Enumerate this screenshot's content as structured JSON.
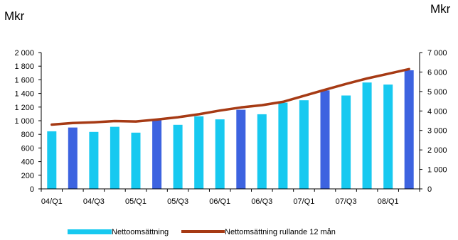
{
  "chart_data": {
    "type": "bar",
    "y_unit_left": "Mkr",
    "y_unit_right": "Mkr",
    "categories": [
      "04/Q1",
      "04/Q2",
      "04/Q3",
      "04/Q4",
      "05/Q1",
      "05/Q2",
      "05/Q3",
      "05/Q4",
      "06/Q1",
      "06/Q2",
      "06/Q3",
      "06/Q4",
      "07/Q1",
      "07/Q2",
      "07/Q3",
      "07/Q4",
      "08/Q1",
      "08/Q2"
    ],
    "x_tick_labels": [
      "04/Q1",
      "04/Q3",
      "05/Q1",
      "05/Q3",
      "06/Q1",
      "06/Q3",
      "07/Q1",
      "07/Q3",
      "08/Q1"
    ],
    "series": [
      {
        "name": "Nettoomsättning",
        "axis": "left",
        "type": "bar",
        "values": [
          845,
          900,
          835,
          910,
          825,
          1020,
          940,
          1065,
          1020,
          1160,
          1095,
          1265,
          1300,
          1445,
          1370,
          1560,
          1530,
          1740
        ]
      },
      {
        "name": "Nettomsättning rullande 12 mån",
        "axis": "right",
        "type": "line",
        "values": [
          3300,
          3380,
          3420,
          3480,
          3460,
          3560,
          3680,
          3830,
          4020,
          4180,
          4300,
          4470,
          4780,
          5090,
          5390,
          5670,
          5910,
          6150
        ]
      }
    ],
    "left_axis": {
      "range": [
        0,
        2000
      ],
      "ticks": [
        "0",
        "200",
        "400",
        "600",
        "800",
        "1 000",
        "1 200",
        "1 400",
        "1 600",
        "1 800",
        "2 000"
      ]
    },
    "right_axis": {
      "range": [
        0,
        7000
      ],
      "ticks": [
        "0",
        "1 000",
        "2 000",
        "3 000",
        "4 000",
        "5 000",
        "6 000",
        "7 000"
      ]
    },
    "grid": false,
    "legend_position": "bottom",
    "colors": {
      "bar_light": "#17C9F0",
      "bar_dark": "#3D63E0",
      "line": "#A63A14",
      "axis": "#000000"
    },
    "dark_bar_indices": [
      1,
      5,
      9,
      13,
      17
    ]
  }
}
